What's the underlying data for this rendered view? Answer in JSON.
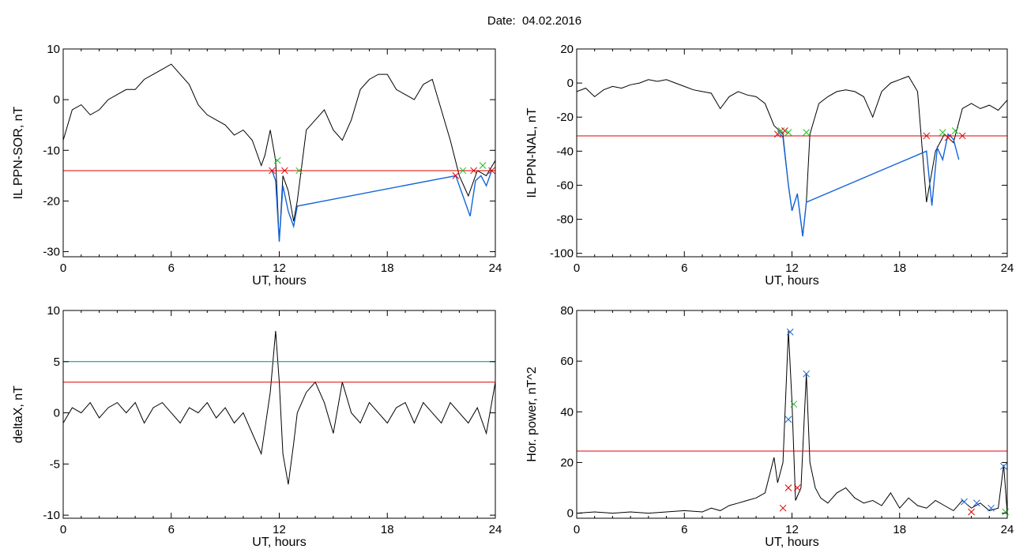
{
  "figure": {
    "title": "Date:  04.02.2016",
    "colors": {
      "trace": "#000000",
      "threshold_red": "#e00000",
      "threshold_teal": "#008b8b",
      "event_blue": "#1565d8",
      "marker_red": "#e00000",
      "marker_green": "#22c022",
      "marker_blue": "#1565d8"
    }
  },
  "chart_data": [
    {
      "type": "line",
      "title": "",
      "xlabel": "UT, hours",
      "ylabel": "IL PPN-SOR, nT",
      "xlim": [
        0,
        24
      ],
      "ylim": [
        -31,
        10
      ],
      "xticks": [
        0,
        6,
        12,
        18,
        24
      ],
      "yticks": [
        10,
        0,
        -10,
        -20,
        -30
      ],
      "grid": false,
      "series": [
        {
          "color": "#000000",
          "x": [
            0,
            0.5,
            1,
            1.5,
            2,
            2.5,
            3,
            3.5,
            4,
            4.5,
            5,
            5.5,
            6,
            6.5,
            7,
            7.5,
            8,
            8.5,
            9,
            9.5,
            10,
            10.5,
            11,
            11.2,
            11.5,
            11.8,
            12,
            12.2,
            12.5,
            12.8,
            13,
            13.5,
            14,
            14.5,
            15,
            15.5,
            16,
            16.5,
            17,
            17.5,
            18,
            18.5,
            19,
            19.5,
            20,
            20.5,
            21,
            21.5,
            22,
            22.5,
            23,
            23.5,
            24
          ],
          "y": [
            -8,
            -2,
            -1,
            -3,
            -2,
            0,
            1,
            2,
            2,
            4,
            5,
            6,
            7,
            5,
            3,
            -1,
            -3,
            -4,
            -5,
            -7,
            -6,
            -8,
            -13,
            -11,
            -6,
            -12,
            -28,
            -15,
            -18,
            -24,
            -20,
            -6,
            -4,
            -2,
            -6,
            -8,
            -4,
            2,
            4,
            5,
            5,
            2,
            1,
            0,
            3,
            4,
            -2,
            -8,
            -15,
            -19,
            -14,
            -15,
            -12
          ]
        },
        {
          "name": "",
          "color": "#1565d8",
          "x": [
            11.6,
            11.8,
            12,
            12.2,
            12.5,
            12.8,
            13,
            21.8,
            22,
            22.3,
            22.6,
            22.9,
            23.2,
            23.5,
            23.8
          ],
          "y": [
            -14,
            -16,
            -28,
            -17,
            -22,
            -25,
            -21,
            -15,
            -17,
            -20,
            -23,
            -16,
            -15,
            -17,
            -14
          ]
        }
      ],
      "thresholds": [
        {
          "y": -14,
          "color": "#e00000"
        }
      ],
      "markers": [
        {
          "x": 11.6,
          "y": -14,
          "color": "#e00000"
        },
        {
          "x": 11.9,
          "y": -12,
          "color": "#22c022"
        },
        {
          "x": 12.3,
          "y": -14,
          "color": "#e00000"
        },
        {
          "x": 13.1,
          "y": -14,
          "color": "#22c022"
        },
        {
          "x": 21.8,
          "y": -15,
          "color": "#e00000"
        },
        {
          "x": 22.2,
          "y": -14,
          "color": "#22c022"
        },
        {
          "x": 22.8,
          "y": -14,
          "color": "#e00000"
        },
        {
          "x": 23.3,
          "y": -13,
          "color": "#22c022"
        },
        {
          "x": 23.8,
          "y": -14,
          "color": "#e00000"
        }
      ]
    },
    {
      "type": "line",
      "title": "",
      "xlabel": "UT, hours",
      "ylabel": "IL PPN-NAL, nT",
      "xlim": [
        0,
        24
      ],
      "ylim": [
        -102,
        20
      ],
      "xticks": [
        0,
        6,
        12,
        18,
        24
      ],
      "yticks": [
        20,
        0,
        -20,
        -40,
        -60,
        -80,
        -100
      ],
      "grid": false,
      "series": [
        {
          "color": "#000000",
          "x": [
            0,
            0.5,
            1,
            1.5,
            2,
            2.5,
            3,
            3.5,
            4,
            4.5,
            5,
            5.5,
            6,
            6.5,
            7,
            7.5,
            8,
            8.5,
            9,
            9.5,
            10,
            10.5,
            11,
            11.5,
            11.8,
            12,
            12.3,
            12.6,
            12.8,
            13,
            13.5,
            14,
            14.5,
            15,
            15.5,
            16,
            16.5,
            17,
            17.5,
            18,
            18.5,
            19,
            19.5,
            20,
            20.5,
            21,
            21.5,
            22,
            22.5,
            23,
            23.5,
            24
          ],
          "y": [
            -5,
            -3,
            -8,
            -4,
            -2,
            -3,
            -1,
            0,
            2,
            1,
            2,
            0,
            -2,
            -4,
            -5,
            -6,
            -15,
            -8,
            -5,
            -7,
            -8,
            -12,
            -25,
            -30,
            -60,
            -75,
            -65,
            -90,
            -70,
            -30,
            -12,
            -8,
            -5,
            -4,
            -5,
            -8,
            -20,
            -5,
            0,
            2,
            4,
            -5,
            -70,
            -40,
            -30,
            -35,
            -15,
            -12,
            -15,
            -13,
            -16,
            -10
          ]
        },
        {
          "name": "",
          "color": "#1565d8",
          "x": [
            11.2,
            11.5,
            11.8,
            12,
            12.3,
            12.6,
            12.8,
            19.5,
            19.8,
            20.1,
            20.4,
            20.7,
            21,
            21.3
          ],
          "y": [
            -28,
            -32,
            -60,
            -75,
            -65,
            -90,
            -70,
            -40,
            -72,
            -38,
            -45,
            -30,
            -33,
            -45
          ]
        }
      ],
      "thresholds": [
        {
          "y": -31,
          "color": "#e00000"
        }
      ],
      "markers": [
        {
          "x": 11.2,
          "y": -30,
          "color": "#e00000"
        },
        {
          "x": 11.4,
          "y": -28,
          "color": "#22c022"
        },
        {
          "x": 11.6,
          "y": -28,
          "color": "#e00000"
        },
        {
          "x": 11.8,
          "y": -29,
          "color": "#22c022"
        },
        {
          "x": 12.8,
          "y": -29,
          "color": "#22c022"
        },
        {
          "x": 19.5,
          "y": -31,
          "color": "#e00000"
        },
        {
          "x": 20.4,
          "y": -29,
          "color": "#22c022"
        },
        {
          "x": 20.7,
          "y": -32,
          "color": "#e00000"
        },
        {
          "x": 21.1,
          "y": -28,
          "color": "#22c022"
        },
        {
          "x": 21.5,
          "y": -31,
          "color": "#e00000"
        }
      ]
    },
    {
      "type": "line",
      "title": "",
      "xlabel": "UT, hours",
      "ylabel": "deltaX, nT",
      "xlim": [
        0,
        24
      ],
      "ylim": [
        -10.3,
        10
      ],
      "xticks": [
        0,
        6,
        12,
        18,
        24
      ],
      "yticks": [
        10,
        5,
        0,
        -5,
        -10
      ],
      "grid": false,
      "series": [
        {
          "color": "#000000",
          "x": [
            0,
            0.5,
            1,
            1.5,
            2,
            2.5,
            3,
            3.5,
            4,
            4.5,
            5,
            5.5,
            6,
            6.5,
            7,
            7.5,
            8,
            8.5,
            9,
            9.5,
            10,
            10.5,
            11,
            11.5,
            11.8,
            12,
            12.2,
            12.5,
            12.8,
            13,
            13.5,
            14,
            14.5,
            15,
            15.5,
            16,
            16.5,
            17,
            17.5,
            18,
            18.5,
            19,
            19.5,
            20,
            20.5,
            21,
            21.5,
            22,
            22.5,
            23,
            23.5,
            24
          ],
          "y": [
            -1,
            0.5,
            0,
            1,
            -0.5,
            0.5,
            1,
            0,
            1,
            -1,
            0.5,
            1,
            0,
            -1,
            0.5,
            0,
            1,
            -0.5,
            0.5,
            -1,
            0,
            -2,
            -4,
            2,
            8,
            3,
            -4,
            -7,
            -3,
            0,
            2,
            3,
            1,
            -2,
            3,
            0,
            -1,
            1,
            0,
            -1,
            0.5,
            1,
            -1,
            1,
            0,
            -1,
            1,
            0,
            -1,
            0.5,
            -2,
            3
          ]
        }
      ],
      "thresholds": [
        {
          "y": 5,
          "color": "#008b8b"
        },
        {
          "y": 3,
          "color": "#e00000"
        }
      ],
      "markers": []
    },
    {
      "type": "line",
      "title": "",
      "xlabel": "UT, hours",
      "ylabel": "Hor. power, nT^2",
      "xlim": [
        0,
        24
      ],
      "ylim": [
        -2,
        80
      ],
      "xticks": [
        0,
        6,
        12,
        18,
        24
      ],
      "yticks": [
        80,
        60,
        40,
        20,
        0
      ],
      "grid": false,
      "series": [
        {
          "color": "#000000",
          "x": [
            0,
            1,
            2,
            3,
            4,
            5,
            6,
            7,
            7.5,
            8,
            8.5,
            9,
            9.5,
            10,
            10.5,
            11,
            11.2,
            11.5,
            11.8,
            12,
            12.2,
            12.5,
            12.8,
            13,
            13.3,
            13.6,
            14,
            14.5,
            15,
            15.5,
            16,
            16.5,
            17,
            17.5,
            18,
            18.5,
            19,
            19.5,
            20,
            20.5,
            21,
            21.5,
            22,
            22.5,
            23,
            23.5,
            23.8,
            24
          ],
          "y": [
            0,
            0.5,
            0,
            0.5,
            0,
            0.5,
            1,
            0.5,
            2,
            1,
            3,
            4,
            5,
            6,
            8,
            22,
            12,
            20,
            72,
            44,
            5,
            10,
            55,
            20,
            10,
            6,
            4,
            8,
            10,
            6,
            4,
            5,
            3,
            8,
            2,
            6,
            3,
            2,
            5,
            3,
            1,
            5,
            2,
            4,
            1,
            2,
            19,
            0
          ]
        }
      ],
      "thresholds": [
        {
          "y": 24.5,
          "color": "#e00000"
        }
      ],
      "markers": [
        {
          "x": 11.5,
          "y": 2,
          "color": "#e00000"
        },
        {
          "x": 11.8,
          "y": 10,
          "color": "#e00000"
        },
        {
          "x": 11.8,
          "y": 37,
          "color": "#1565d8"
        },
        {
          "x": 11.9,
          "y": 71.5,
          "color": "#1565d8"
        },
        {
          "x": 12.1,
          "y": 43,
          "color": "#22c022"
        },
        {
          "x": 12.3,
          "y": 10,
          "color": "#e00000"
        },
        {
          "x": 12.8,
          "y": 55,
          "color": "#1565d8"
        },
        {
          "x": 21.6,
          "y": 4.5,
          "color": "#1565d8"
        },
        {
          "x": 22.3,
          "y": 4,
          "color": "#1565d8"
        },
        {
          "x": 22.0,
          "y": 0.5,
          "color": "#e00000"
        },
        {
          "x": 23.1,
          "y": 2,
          "color": "#1565d8"
        },
        {
          "x": 23.8,
          "y": 18.5,
          "color": "#1565d8"
        },
        {
          "x": 23.9,
          "y": 0.5,
          "color": "#22c022"
        }
      ]
    }
  ]
}
